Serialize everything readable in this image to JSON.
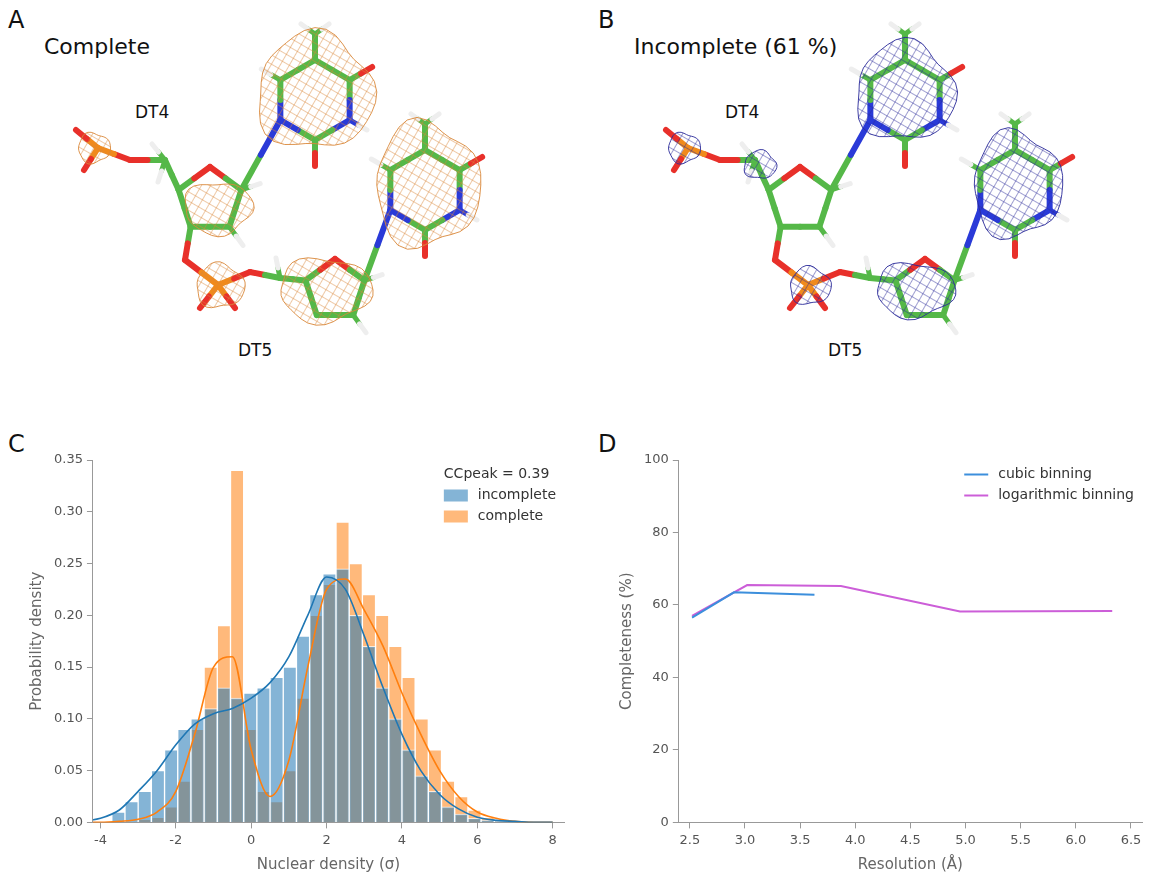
{
  "panels": [
    {
      "panel": "A",
      "title": "Complete",
      "labels": [
        "DT4",
        "DT5"
      ]
    },
    {
      "panel": "B",
      "title": "Incomplete (61 %)",
      "labels": [
        "DT4",
        "DT5"
      ]
    }
  ],
  "chart_data": [
    {
      "panel": "C",
      "type": "histogram",
      "x_label": "Nuclear density (σ)",
      "y_label": "Probability density",
      "annotations": [
        "CCpeak = 0.39"
      ],
      "bins": [
        -3.7,
        -3.35,
        -3.0,
        -2.65,
        -2.3,
        -1.95,
        -1.6,
        -1.25,
        -0.9,
        -0.55,
        -0.2,
        0.15,
        0.5,
        0.85,
        1.2,
        1.55,
        1.9,
        2.25,
        2.6,
        2.95,
        3.3,
        3.65,
        4.0,
        4.35,
        4.7,
        5.05,
        5.4,
        5.75,
        6.1,
        6.45,
        6.8,
        7.15
      ],
      "kde_x": [
        -4.5,
        -4,
        -3.5,
        -3,
        -2.5,
        -2,
        -1.5,
        -1,
        -0.5,
        0,
        0.5,
        1,
        1.5,
        2,
        2.5,
        3,
        3.5,
        4,
        4.5,
        5,
        5.5,
        6,
        6.5,
        7,
        7.5,
        8
      ],
      "series": [
        {
          "name": "incomplete",
          "color": "#1f77b4",
          "values": [
            0.01,
            0.02,
            0.03,
            0.05,
            0.07,
            0.09,
            0.1,
            0.11,
            0.13,
            0.12,
            0.125,
            0.13,
            0.14,
            0.15,
            0.18,
            0.22,
            0.24,
            0.245,
            0.2,
            0.17,
            0.13,
            0.1,
            0.07,
            0.045,
            0.03,
            0.015,
            0.008,
            0.004,
            0.002,
            0.001,
            0
          ],
          "kde": [
            0.001,
            0.004,
            0.012,
            0.03,
            0.05,
            0.075,
            0.095,
            0.105,
            0.11,
            0.12,
            0.135,
            0.16,
            0.2,
            0.237,
            0.225,
            0.18,
            0.13,
            0.085,
            0.05,
            0.027,
            0.013,
            0.005,
            0.002,
            0.001,
            0,
            0
          ]
        },
        {
          "name": "complete",
          "color": "#ff7f0e",
          "values": [
            0,
            0,
            0.003,
            0.005,
            0.015,
            0.04,
            0.09,
            0.15,
            0.19,
            0.34,
            0.09,
            0.03,
            0.02,
            0.05,
            0.12,
            0.2,
            0.23,
            0.29,
            0.25,
            0.22,
            0.2,
            0.17,
            0.14,
            0.1,
            0.07,
            0.04,
            0.025,
            0.012,
            0.005,
            0.002,
            0.001
          ],
          "kde": [
            0,
            0,
            0.001,
            0.003,
            0.01,
            0.03,
            0.085,
            0.15,
            0.16,
            0.07,
            0.025,
            0.06,
            0.15,
            0.225,
            0.235,
            0.205,
            0.17,
            0.125,
            0.085,
            0.05,
            0.025,
            0.01,
            0.004,
            0.001,
            0,
            0
          ]
        }
      ],
      "xlim": [
        -4.2,
        8.3
      ],
      "xticks": [
        -4,
        -2,
        0,
        2,
        4,
        6,
        8
      ],
      "ylim": [
        0,
        0.35
      ],
      "yticks": [
        {
          "value": 0,
          "label": "0.00"
        },
        {
          "value": 0.05,
          "label": "0.05"
        },
        {
          "value": 0.1,
          "label": "0.10"
        },
        {
          "value": 0.15,
          "label": "0.15"
        },
        {
          "value": 0.2,
          "label": "0.20"
        },
        {
          "value": 0.25,
          "label": "0.25"
        },
        {
          "value": 0.3,
          "label": "0.30"
        },
        {
          "value": 0.35,
          "label": "0.35"
        }
      ],
      "grid": false,
      "legend": "upper right"
    },
    {
      "panel": "D",
      "type": "line",
      "x_label": "Resolution (Å)",
      "y_label": "Completeness (%)",
      "series": [
        {
          "name": "cubic binning",
          "color": "#3c8fdc",
          "x": [
            2.52,
            2.9,
            3.63
          ],
          "values": [
            56.5,
            63.5,
            62.8
          ]
        },
        {
          "name": "logarithmic binning",
          "color": "#cc5ed8",
          "x": [
            2.52,
            3.02,
            3.87,
            4.95,
            6.33
          ],
          "values": [
            57,
            65.5,
            65.2,
            58.2,
            58.3
          ]
        }
      ],
      "xlim": [
        2.4,
        6.6
      ],
      "xticks": [
        2.5,
        {
          "value": 3,
          "label": "3.0"
        },
        3.5,
        {
          "value": 4,
          "label": "4.0"
        },
        4.5,
        {
          "value": 5,
          "label": "5.0"
        },
        5.5,
        {
          "value": 6,
          "label": "6.0"
        },
        6.5
      ],
      "ylim": [
        0,
        100
      ],
      "yticks": [
        0,
        20,
        40,
        60,
        80,
        100
      ],
      "grid": false,
      "legend": "upper right"
    }
  ]
}
